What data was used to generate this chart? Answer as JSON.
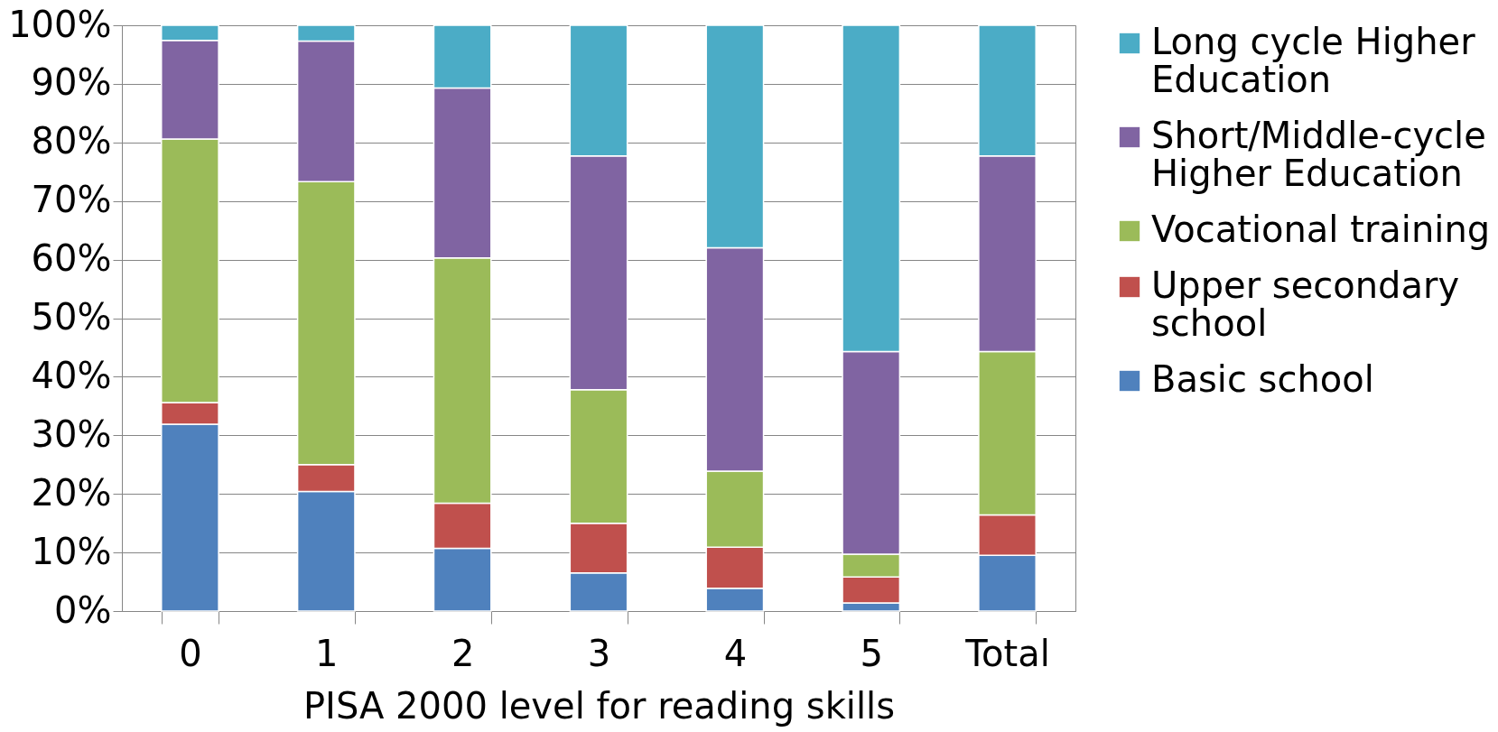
{
  "chart_data": {
    "type": "bar",
    "stacked": true,
    "xlabel": "PISA 2000 level for reading skills",
    "categories": [
      "0",
      "1",
      "2",
      "3",
      "4",
      "5",
      "Total"
    ],
    "series": [
      {
        "name": "Basic school",
        "color": "#4f81bd",
        "values": [
          31.9,
          20.4,
          10.7,
          6.5,
          3.9,
          1.4,
          9.5
        ]
      },
      {
        "name": "Upper secondary school",
        "color": "#c0504d",
        "values": [
          3.7,
          4.6,
          7.7,
          8.5,
          7.0,
          4.4,
          6.9
        ]
      },
      {
        "name": "Vocational training",
        "color": "#9bbb59",
        "values": [
          45.0,
          48.3,
          41.9,
          22.8,
          13.0,
          3.9,
          27.9
        ]
      },
      {
        "name": "Short/Middle-cycle Higher Education",
        "color": "#8064a2",
        "values": [
          16.8,
          24.0,
          29.0,
          39.9,
          38.1,
          34.6,
          33.4
        ]
      },
      {
        "name": "Long cycle Higher Education",
        "color": "#4bacc6",
        "values": [
          2.6,
          2.7,
          10.7,
          22.3,
          38.0,
          55.7,
          22.3
        ]
      }
    ],
    "ylim": [
      0,
      100
    ],
    "yticks": [
      {
        "value": 0,
        "label": "0%"
      },
      {
        "value": 10,
        "label": "10%"
      },
      {
        "value": 20,
        "label": "20%"
      },
      {
        "value": 30,
        "label": "30%"
      },
      {
        "value": 40,
        "label": "40%"
      },
      {
        "value": 50,
        "label": "50%"
      },
      {
        "value": 60,
        "label": "60%"
      },
      {
        "value": 70,
        "label": "70%"
      },
      {
        "value": 80,
        "label": "80%"
      },
      {
        "value": 90,
        "label": "90%"
      },
      {
        "value": 100,
        "label": "100%"
      }
    ],
    "grid": "y",
    "legend": "right"
  }
}
